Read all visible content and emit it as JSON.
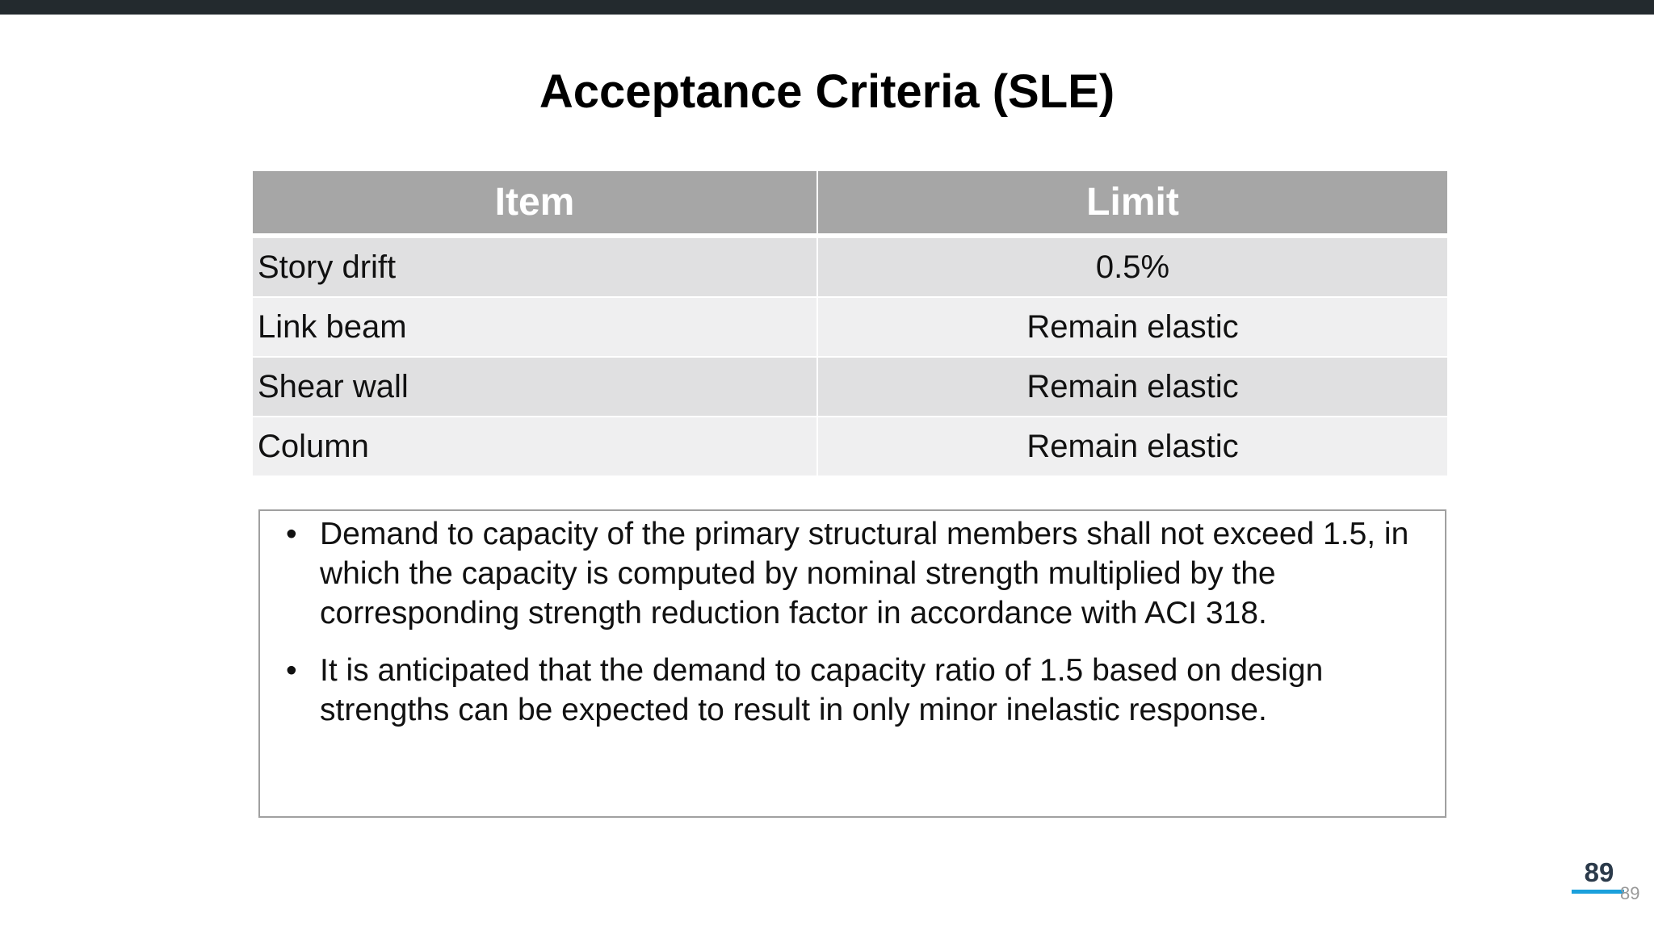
{
  "header": {
    "title": "Acceptance Criteria (SLE)"
  },
  "table": {
    "columns": [
      "Item",
      "Limit"
    ],
    "rows": [
      [
        "Story drift",
        "0.5%"
      ],
      [
        "Link beam",
        "Remain elastic"
      ],
      [
        "Shear wall",
        "Remain elastic"
      ],
      [
        "Column",
        "Remain elastic"
      ]
    ]
  },
  "notes": {
    "bullets": [
      "Demand to capacity of the primary structural members shall not exceed 1.5, in which the capacity is computed by nominal strength multiplied by the corresponding strength reduction factor in accordance with ACI 318.",
      "It is anticipated that the demand to capacity ratio of 1.5 based on design strengths can be expected to result in only minor inelastic response."
    ]
  },
  "footer": {
    "page_number": "89",
    "page_number_small": "89"
  }
}
